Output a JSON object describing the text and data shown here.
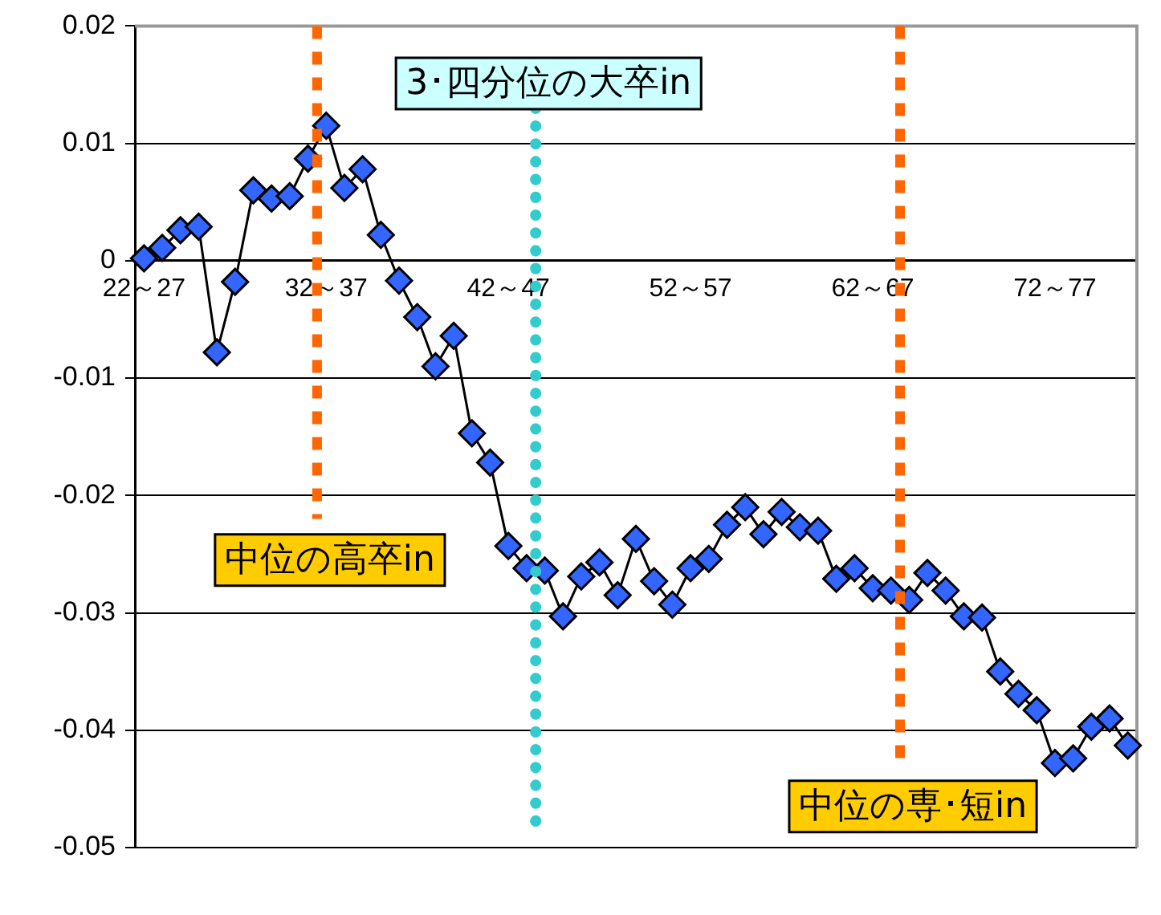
{
  "chart_data": {
    "type": "line",
    "categories": [
      "22～27",
      null,
      null,
      null,
      null,
      null,
      null,
      null,
      null,
      null,
      "32～37",
      null,
      null,
      null,
      null,
      null,
      null,
      null,
      null,
      null,
      "42～47",
      null,
      null,
      null,
      null,
      null,
      null,
      null,
      null,
      null,
      "52～57",
      null,
      null,
      null,
      null,
      null,
      null,
      null,
      null,
      null,
      "62～67",
      null,
      null,
      null,
      null,
      null,
      null,
      null,
      null,
      null,
      "72～77",
      null,
      null,
      null,
      null
    ],
    "series": [
      {
        "color": "#3366ff",
        "values": [
          0.0002,
          0.0011,
          0.0026,
          0.0029,
          -0.0078,
          -0.0018,
          0.006,
          0.0053,
          0.0055,
          0.0087,
          0.0115,
          0.0062,
          0.0078,
          0.0022,
          -0.0017,
          -0.0048,
          -0.009,
          -0.0064,
          -0.0147,
          -0.0172,
          -0.0243,
          -0.0262,
          -0.0264,
          -0.0303,
          -0.0269,
          -0.0257,
          -0.0285,
          -0.0237,
          -0.0273,
          -0.0293,
          -0.0262,
          -0.0254,
          -0.0225,
          -0.021,
          -0.0233,
          -0.0214,
          -0.0227,
          -0.023,
          -0.0271,
          -0.0262,
          -0.0279,
          -0.0281,
          -0.0289,
          -0.0266,
          -0.0281,
          -0.0303,
          -0.0304,
          -0.035,
          -0.0369,
          -0.0383,
          -0.0428,
          -0.0424,
          -0.0397,
          -0.039,
          -0.0413
        ]
      }
    ],
    "ylim": [
      -0.05,
      0.02
    ],
    "yticks": [
      -0.05,
      -0.04,
      -0.03,
      -0.02,
      -0.01,
      0,
      0.01,
      0.02
    ],
    "grid": "y",
    "legend": false,
    "marker": "diamond",
    "line_style": "solid",
    "annotations": [
      "中位の高卒in",
      "3･四分位の大卒in",
      "中位の専･短in"
    ]
  }
}
